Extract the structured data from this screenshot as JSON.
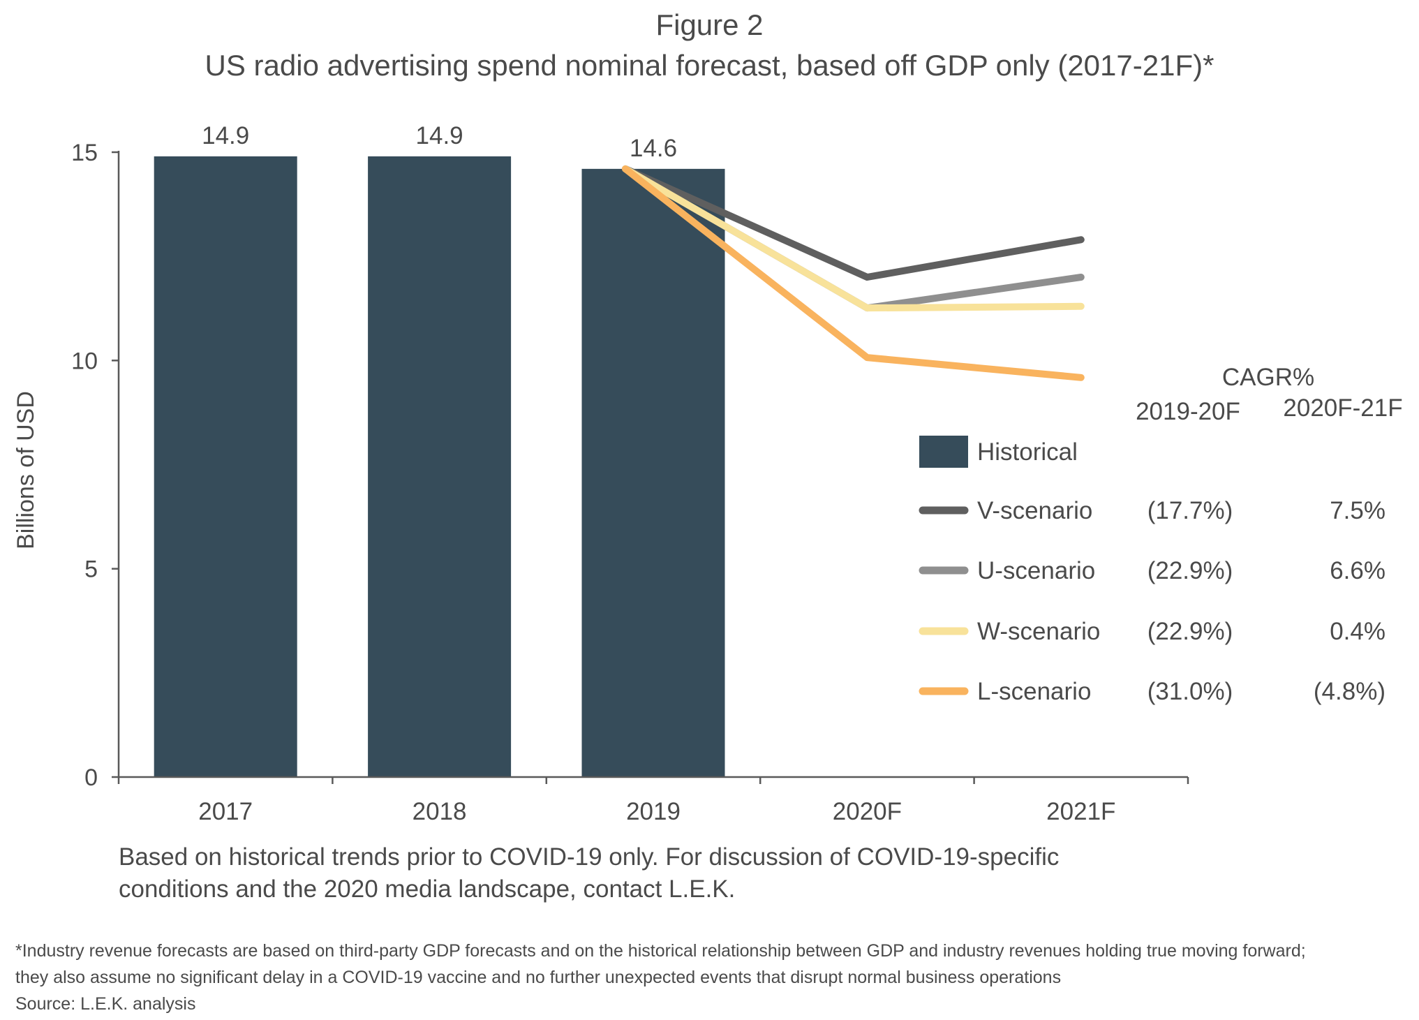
{
  "figure_label": "Figure 2",
  "title": "US radio advertising spend nominal forecast, based off GDP only (2017-21F)*",
  "note": "Based on historical trends prior to COVID-19 only. For discussion of COVID-19-specific conditions and the 2020 media landscape, contact L.E.K.",
  "footnote": {
    "lines": [
      "*Industry revenue forecasts are based on third-party GDP forecasts and on the historical relationship between GDP and industry revenues holding true moving forward;",
      "they also assume no significant delay in a COVID-19 vaccine and no further unexpected events that disrupt normal business operations"
    ],
    "source": "Source: L.E.K. analysis"
  },
  "colors": {
    "bar": "#364c5a",
    "axis": "#595959",
    "text": "#4a4a4a",
    "V-scenario": "#5f5f5f",
    "U-scenario": "#8f8f8f",
    "W-scenario": "#f8e29a",
    "L-scenario": "#f9b35e"
  },
  "chart_data": {
    "type": "bar",
    "categories": [
      "2017",
      "2018",
      "2019",
      "2020F",
      "2021F"
    ],
    "ylabel": "Billions of USD",
    "ylim": [
      0,
      15
    ],
    "yticks": [
      "0",
      "5",
      "10",
      "15"
    ],
    "grid": false,
    "bars": {
      "name": "Historical",
      "categories": [
        "2017",
        "2018",
        "2019"
      ],
      "values": [
        14.9,
        14.9,
        14.6
      ],
      "labels": [
        "14.9",
        "14.9",
        "14.6"
      ]
    },
    "series": [
      {
        "name": "V-scenario",
        "x": [
          "2019",
          "2020F",
          "2021F"
        ],
        "values": [
          14.6,
          12.0,
          12.9
        ]
      },
      {
        "name": "U-scenario",
        "x": [
          "2019",
          "2020F",
          "2021F"
        ],
        "values": [
          14.6,
          11.26,
          12.0
        ]
      },
      {
        "name": "W-scenario",
        "x": [
          "2019",
          "2020F",
          "2021F"
        ],
        "values": [
          14.6,
          11.26,
          11.3
        ]
      },
      {
        "name": "L-scenario",
        "x": [
          "2019",
          "2020F",
          "2021F"
        ],
        "values": [
          14.6,
          10.07,
          9.59
        ]
      }
    ],
    "legend": {
      "position": "right",
      "header": "CAGR%",
      "columns": [
        "2019-20F",
        "2020F-21F"
      ],
      "rows": [
        {
          "name": "Historical",
          "values": [
            "",
            ""
          ]
        },
        {
          "name": "V-scenario",
          "values": [
            "(17.7%)",
            "7.5%"
          ]
        },
        {
          "name": "U-scenario",
          "values": [
            "(22.9%)",
            "6.6%"
          ]
        },
        {
          "name": "W-scenario",
          "values": [
            "(22.9%)",
            "0.4%"
          ]
        },
        {
          "name": "L-scenario",
          "values": [
            "(31.0%)",
            "(4.8%)"
          ]
        }
      ]
    }
  }
}
